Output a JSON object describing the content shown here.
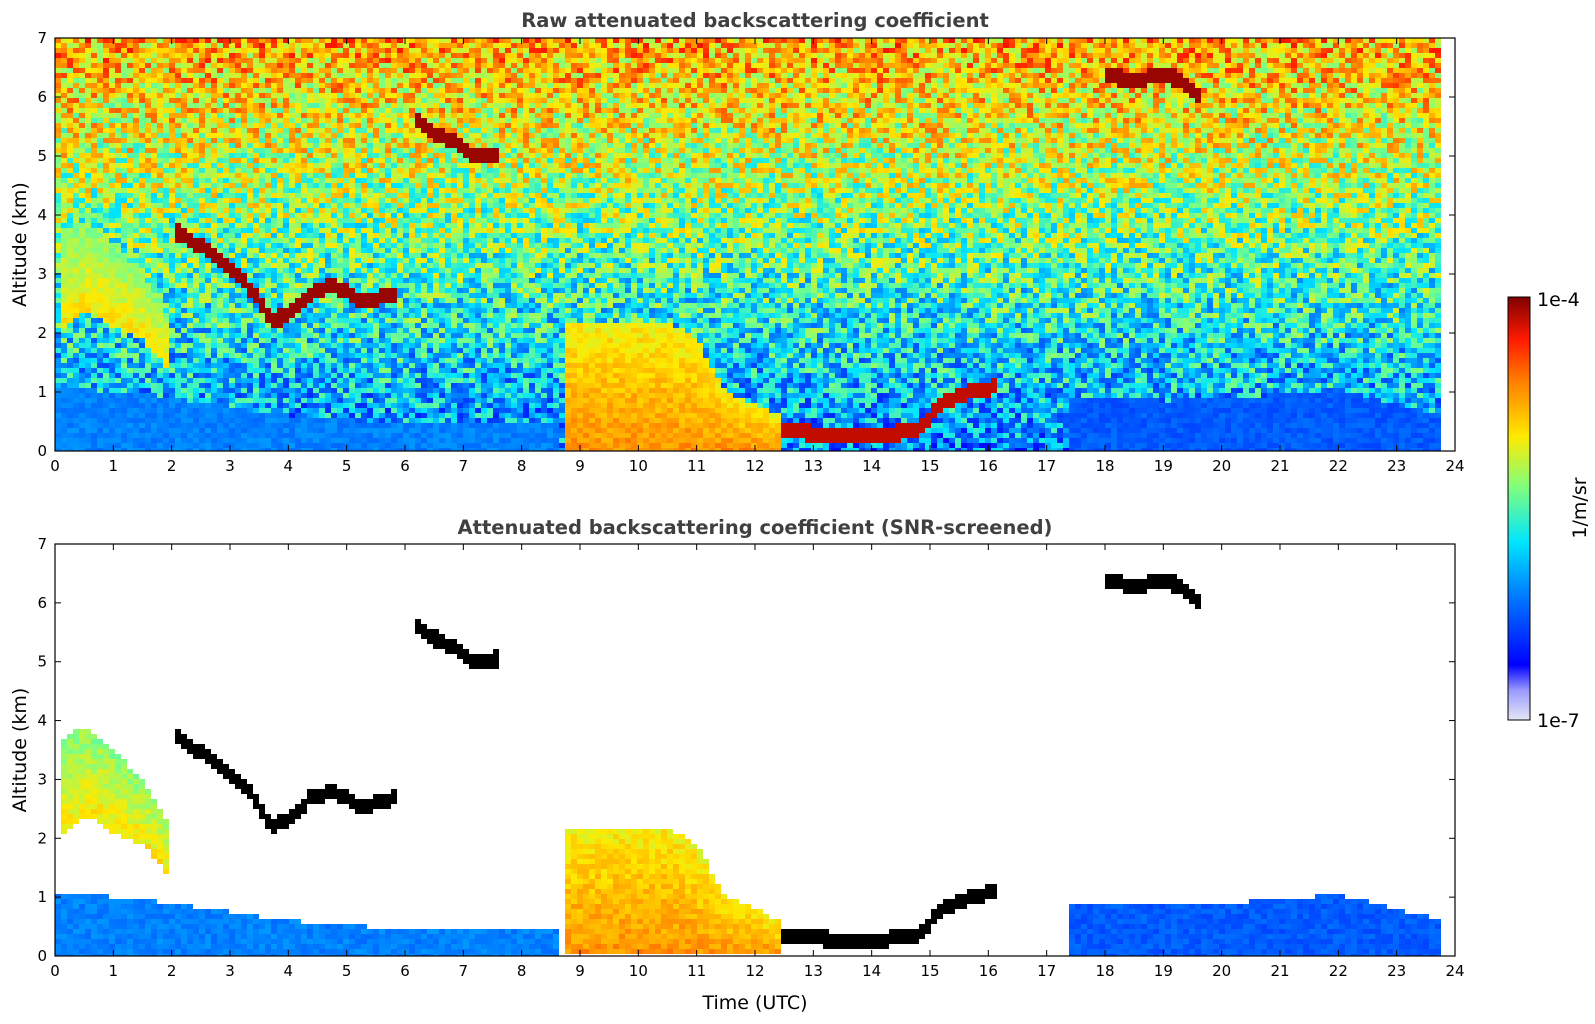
{
  "chart_data": [
    {
      "type": "heatmap",
      "title": "Raw attenuated backscattering coefficient",
      "xlabel": "",
      "ylabel": "Altitude (km)",
      "xlim": [
        0,
        24
      ],
      "ylim": [
        0,
        7
      ],
      "xticks": [
        "0",
        "1",
        "2",
        "3",
        "4",
        "5",
        "6",
        "7",
        "8",
        "9",
        "10",
        "11",
        "12",
        "13",
        "14",
        "15",
        "16",
        "17",
        "18",
        "19",
        "20",
        "21",
        "22",
        "23",
        "24"
      ],
      "yticks": [
        "0",
        "1",
        "2",
        "3",
        "4",
        "5",
        "6",
        "7"
      ],
      "grid": false,
      "features": [
        {
          "kind": "aerosol_layer",
          "times": [
            0.1,
            0.5,
            1.0,
            1.5,
            2.0
          ],
          "top_km": [
            3.7,
            3.9,
            3.5,
            3.0,
            2.2
          ],
          "bottom_km": [
            2.0,
            2.4,
            2.1,
            1.9,
            1.3
          ],
          "level": 0.68
        },
        {
          "kind": "boundary_layer",
          "times": [
            0,
            2,
            4,
            6,
            8,
            8.6
          ],
          "top_km": [
            1.1,
            0.9,
            0.6,
            0.45,
            0.5,
            0.5
          ],
          "level": 0.3
        },
        {
          "kind": "cloud",
          "times": [
            2.1,
            2.6,
            3.0,
            3.4,
            3.7,
            4.0,
            4.4,
            4.8,
            5.2,
            5.6,
            5.9
          ],
          "alt_km": [
            3.7,
            3.4,
            3.1,
            2.7,
            2.2,
            2.3,
            2.7,
            2.8,
            2.55,
            2.6,
            2.7
          ],
          "level": 0.98
        },
        {
          "kind": "cloud",
          "times": [
            6.2,
            6.5,
            6.9,
            7.2,
            7.6
          ],
          "alt_km": [
            5.6,
            5.4,
            5.2,
            5.0,
            5.05
          ],
          "level": 0.98
        },
        {
          "kind": "cloud",
          "times": [
            18.0,
            18.5,
            19.0,
            19.3,
            19.6
          ],
          "alt_km": [
            6.35,
            6.3,
            6.35,
            6.3,
            6.0
          ],
          "level": 0.98
        },
        {
          "kind": "aerosol_layer",
          "times": [
            8.7,
            9.5,
            10.5,
            11.0,
            11.5,
            12.0,
            12.4
          ],
          "top_km": [
            2.2,
            2.2,
            2.2,
            1.9,
            1.0,
            0.8,
            0.6
          ],
          "bottom_km": [
            0,
            0,
            0,
            0,
            0,
            0,
            0
          ],
          "level": 0.78
        },
        {
          "kind": "cloud",
          "times": [
            12.4,
            13.0,
            14.0,
            14.8,
            15.2,
            15.7,
            16.2
          ],
          "alt_km": [
            0.35,
            0.3,
            0.25,
            0.35,
            0.8,
            1.0,
            1.1
          ],
          "level": 0.95
        },
        {
          "kind": "boundary_layer",
          "times": [
            17.4,
            19,
            21,
            22,
            23,
            23.8
          ],
          "top_km": [
            0.9,
            0.85,
            0.95,
            1.05,
            0.8,
            0.6
          ],
          "level": 0.25
        }
      ]
    },
    {
      "type": "heatmap",
      "title": "Attenuated backscattering coefficient (SNR-screened)",
      "xlabel": "Time (UTC)",
      "ylabel": "Altitude (km)",
      "xlim": [
        0,
        24
      ],
      "ylim": [
        0,
        7
      ],
      "xticks": [
        "0",
        "1",
        "2",
        "3",
        "4",
        "5",
        "6",
        "7",
        "8",
        "9",
        "10",
        "11",
        "12",
        "13",
        "14",
        "15",
        "16",
        "17",
        "18",
        "19",
        "20",
        "21",
        "22",
        "23",
        "24"
      ],
      "yticks": [
        "0",
        "1",
        "2",
        "3",
        "4",
        "5",
        "6",
        "7"
      ],
      "grid": false
    }
  ],
  "colorbar": {
    "label": "1/m/sr",
    "max_label": "1e-4",
    "min_label": "1e-7",
    "scale": "log",
    "colormap": "jet",
    "range": [
      1e-07,
      0.0001
    ]
  },
  "colors": {
    "title_text": "#404040",
    "screened_cloud": "#000000"
  }
}
